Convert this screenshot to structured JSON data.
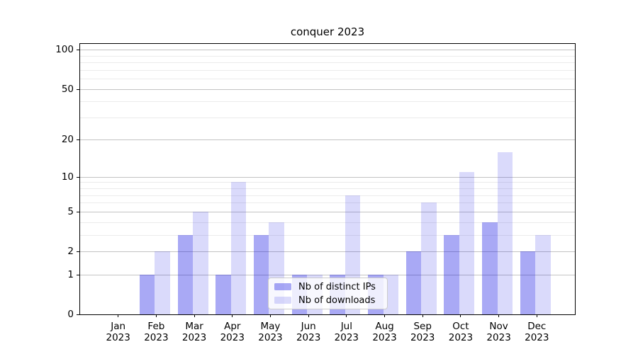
{
  "chart_data": {
    "type": "bar",
    "title": "conquer 2023",
    "x_tick_months": [
      "Jan",
      "Feb",
      "Mar",
      "Apr",
      "May",
      "Jun",
      "Jul",
      "Aug",
      "Sep",
      "Oct",
      "Nov",
      "Dec"
    ],
    "x_tick_year": "2023",
    "series": [
      {
        "name": "Nb of distinct IPs",
        "color": "rgba(10,10,225,0.35)",
        "values": [
          0,
          1,
          3,
          1,
          3,
          1,
          1,
          1,
          2,
          3,
          4,
          2
        ]
      },
      {
        "name": "Nb of downloads",
        "color": "rgba(10,10,225,0.15)",
        "values": [
          0,
          2,
          5,
          9,
          4,
          1,
          7,
          1,
          6,
          11,
          16,
          3
        ]
      }
    ],
    "yscale": "log1p",
    "ylim": [
      0,
      110.7
    ],
    "y_major_ticks": [
      0,
      1,
      2,
      5,
      10,
      20,
      50,
      100
    ],
    "y_minor_ticks": [
      3,
      4,
      6,
      7,
      8,
      9,
      30,
      40,
      60,
      70,
      80,
      90
    ],
    "grid": "both",
    "legend_position": "lower center",
    "colors": {
      "background": "#ffffff",
      "axis": "#000000",
      "grid_major": "#c3c3c3",
      "grid_minor": "#ebebeb",
      "text": "#000000",
      "legend_border": "#cccccc",
      "legend_bg": "rgba(255,255,255,0.8)"
    }
  }
}
